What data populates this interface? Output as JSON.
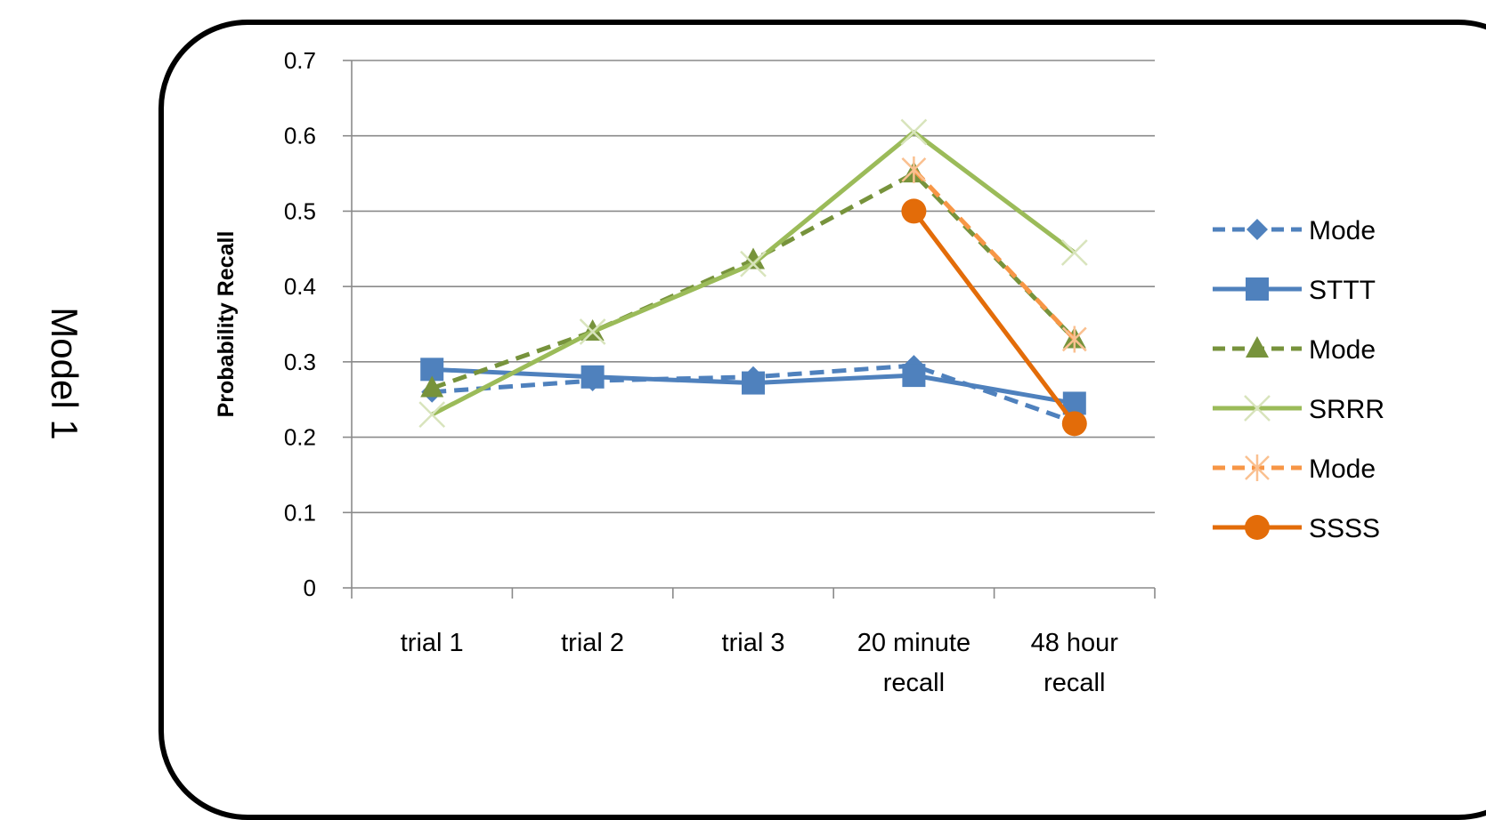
{
  "side_label": "Model 1",
  "chart_data": {
    "type": "line",
    "title": "",
    "xlabel": "",
    "ylabel": "Probability Recall",
    "ylim": [
      0,
      0.7
    ],
    "yticks": [
      "0",
      "0.1",
      "0.2",
      "0.3",
      "0.4",
      "0.5",
      "0.6",
      "0.7"
    ],
    "categories": [
      [
        "trial 1"
      ],
      [
        "trial 2"
      ],
      [
        "trial 3"
      ],
      [
        "20 minute",
        "recall"
      ],
      [
        "48 hour",
        "recall"
      ]
    ],
    "grid": "horizontal",
    "legend": "right",
    "series": [
      {
        "name": "Mode",
        "values": [
          0.26,
          0.275,
          0.28,
          0.295,
          0.22
        ],
        "color": "#4F81BD",
        "dash": true,
        "marker": "diamond"
      },
      {
        "name": "STTT",
        "values": [
          0.29,
          0.28,
          0.272,
          0.282,
          0.245
        ],
        "color": "#4F81BD",
        "dash": false,
        "marker": "square"
      },
      {
        "name": "Mode",
        "values": [
          0.265,
          0.34,
          0.435,
          0.55,
          0.33
        ],
        "color": "#77933C",
        "dash": true,
        "marker": "triangle"
      },
      {
        "name": "SRRR",
        "values": [
          0.23,
          0.34,
          0.43,
          0.605,
          0.445
        ],
        "color": "#9BBB59",
        "dash": false,
        "marker": "x"
      },
      {
        "name": "Mode",
        "values": [
          null,
          null,
          null,
          0.555,
          0.33
        ],
        "color": "#F79646",
        "dash": true,
        "marker": "star"
      },
      {
        "name": "SSSS",
        "values": [
          null,
          null,
          null,
          0.5,
          0.218
        ],
        "color": "#E36C09",
        "dash": false,
        "marker": "circle"
      }
    ]
  }
}
